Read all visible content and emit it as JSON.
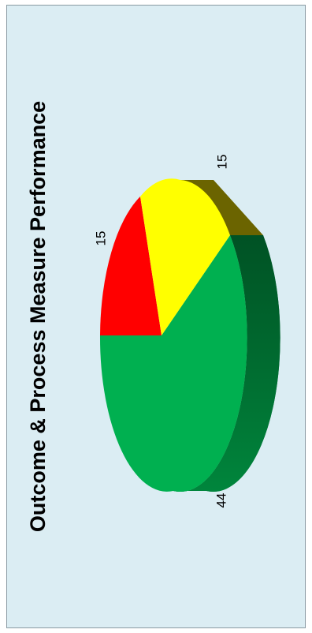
{
  "chart_data": {
    "type": "pie",
    "title": "Outcome & Process Measure Performance",
    "categories": [
      "",
      "",
      ""
    ],
    "values": [
      44,
      15,
      15
    ],
    "data_labels": [
      "44",
      "15",
      "15"
    ],
    "colors": [
      "#00b050",
      "#ff0000",
      "#ffff00"
    ],
    "side_colors": [
      "#006b30",
      "#8a0000",
      "#6b6400"
    ],
    "legend": "none",
    "style": "3d-pie"
  }
}
